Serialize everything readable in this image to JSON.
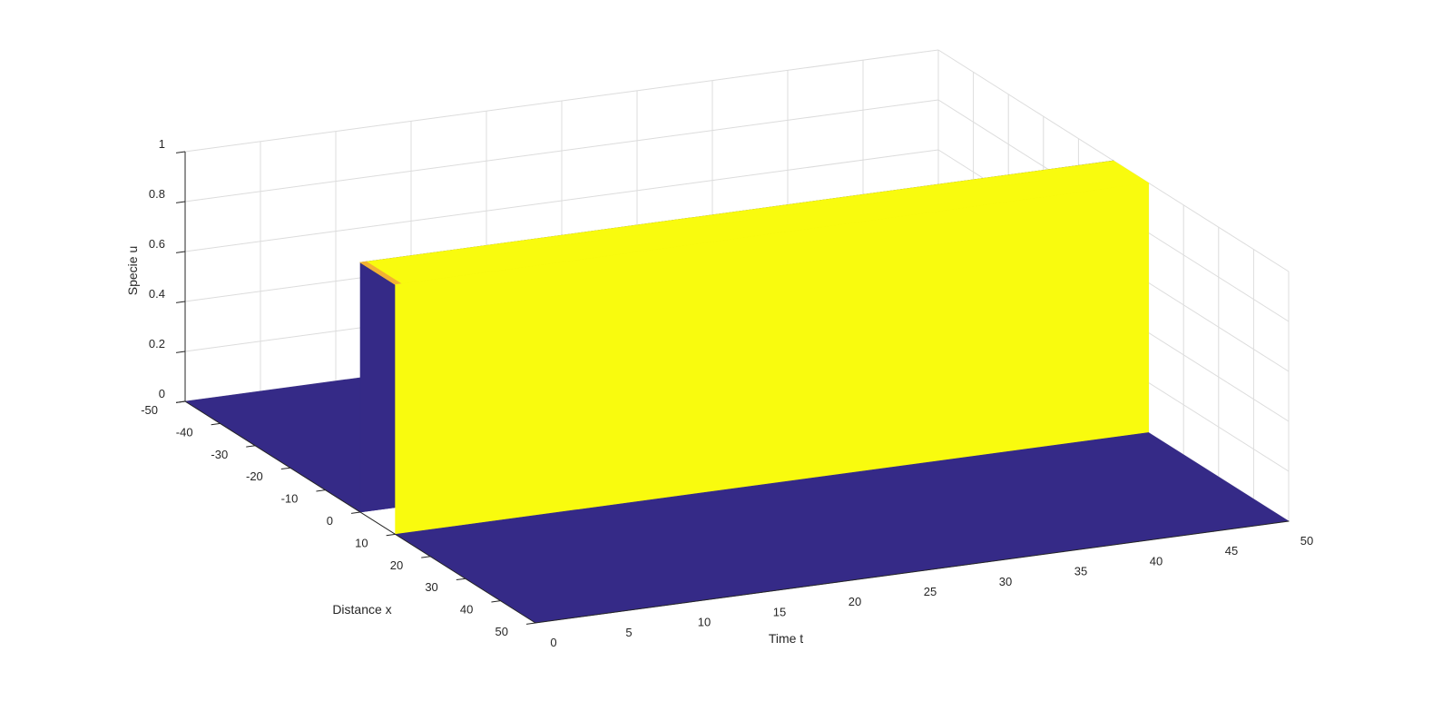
{
  "chart_data": {
    "type": "surface",
    "xlabel": "Time t",
    "ylabel": "Distance x",
    "zlabel": "Specie u",
    "x_ticks": [
      0,
      5,
      10,
      15,
      20,
      25,
      30,
      35,
      40,
      45,
      50
    ],
    "y_ticks": [
      -50,
      -40,
      -30,
      -20,
      -10,
      0,
      10,
      20,
      30,
      40,
      50
    ],
    "z_ticks": [
      0,
      0.2,
      0.4,
      0.6,
      0.8,
      1
    ],
    "xlim": [
      0,
      50
    ],
    "ylim": [
      -50,
      50
    ],
    "zlim": [
      0,
      1
    ],
    "grid": true,
    "surface": {
      "description_values": {
        "plateau_value": 1,
        "background_value": 0,
        "pulse_x_start": 0,
        "pulse_x_end": 10,
        "t_start": 0,
        "t_end": 50
      }
    },
    "colors": {
      "low": "#352a87",
      "high": "#f9fb0e",
      "edge": "#f2b233",
      "grid": "#dcdcdc",
      "axis": "#262626"
    }
  }
}
